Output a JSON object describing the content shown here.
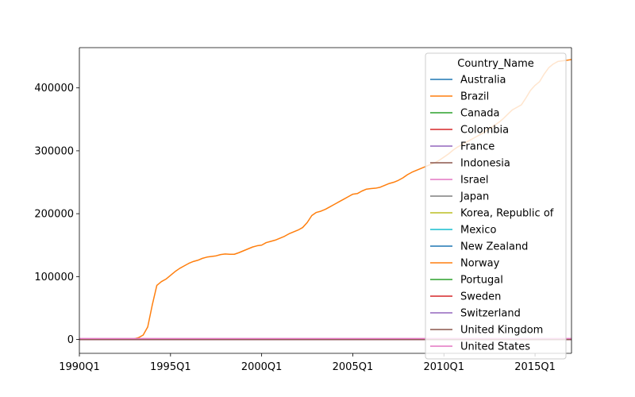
{
  "chart_data": {
    "type": "line",
    "title": "",
    "xlabel": "",
    "ylabel": "",
    "x_tick_labels": [
      "1990Q1",
      "1995Q1",
      "2000Q1",
      "2005Q1",
      "2010Q1",
      "2015Q1"
    ],
    "y_tick_labels": [
      "0",
      "100000",
      "200000",
      "300000",
      "400000"
    ],
    "xlim": [
      0,
      108
    ],
    "ylim": [
      -22000,
      464000
    ],
    "grid": false,
    "legend": {
      "title": "Country_Name",
      "placement": "top-right"
    },
    "series": [
      {
        "name": "Australia",
        "color": "#1f77b4",
        "x": [
          0,
          108
        ],
        "values": [
          0,
          0
        ]
      },
      {
        "name": "Brazil",
        "color": "#ff7f0e",
        "x": [
          0,
          10,
          12,
          13,
          14,
          15,
          16,
          17,
          18,
          19,
          20,
          21,
          22,
          23,
          24,
          25,
          26,
          27,
          28,
          29,
          30,
          31,
          32,
          33,
          34,
          35,
          36,
          37,
          38,
          39,
          40,
          41,
          42,
          43,
          44,
          45,
          46,
          47,
          48,
          49,
          50,
          51,
          52,
          53,
          54,
          55,
          56,
          57,
          58,
          59,
          60,
          61,
          62,
          63,
          64,
          65,
          66,
          67,
          68,
          69,
          70,
          71,
          72,
          73,
          74,
          75,
          76,
          77,
          78,
          79,
          80,
          81,
          82,
          83,
          84,
          85,
          86,
          87,
          88,
          89,
          90,
          91,
          92,
          93,
          94,
          95,
          96,
          97,
          98,
          99,
          100,
          101,
          102,
          103,
          104,
          105,
          106,
          107,
          108
        ],
        "values": [
          0,
          0,
          1000,
          3000,
          7000,
          20000,
          55000,
          86000,
          92000,
          96000,
          102000,
          108000,
          113000,
          117000,
          121000,
          124000,
          126000,
          129000,
          131000,
          132000,
          133000,
          135000,
          136000,
          135500,
          135500,
          138000,
          141000,
          144000,
          147000,
          149000,
          150000,
          154000,
          156000,
          158000,
          161000,
          164000,
          168000,
          171000,
          174000,
          178000,
          186000,
          197000,
          202000,
          204000,
          207000,
          211000,
          215000,
          219000,
          223000,
          227000,
          231000,
          232000,
          236000,
          239000,
          240000,
          240500,
          242000,
          245000,
          248000,
          250000,
          253000,
          257000,
          262000,
          266000,
          269000,
          272000,
          275000,
          278000,
          281000,
          285000,
          290000,
          295000,
          301000,
          306000,
          310000,
          314000,
          318000,
          322000,
          326000,
          330000,
          335000,
          340000,
          345000,
          351000,
          358000,
          365000,
          369000,
          373000,
          384000,
          396000,
          404000,
          410000,
          422000,
          432000,
          438000,
          442000,
          443000,
          444000,
          445000
        ]
      },
      {
        "name": "Canada",
        "color": "#2ca02c",
        "x": [
          0,
          108
        ],
        "values": [
          0,
          0
        ]
      },
      {
        "name": "Colombia",
        "color": "#d62728",
        "x": [
          0,
          108
        ],
        "values": [
          0,
          0
        ]
      },
      {
        "name": "France",
        "color": "#9467bd",
        "x": [
          0,
          108
        ],
        "values": [
          0,
          0
        ]
      },
      {
        "name": "Indonesia",
        "color": "#8c564b",
        "x": [
          0,
          108
        ],
        "values": [
          0,
          0
        ]
      },
      {
        "name": "Israel",
        "color": "#e377c2",
        "x": [
          0,
          108
        ],
        "values": [
          0,
          0
        ]
      },
      {
        "name": "Japan",
        "color": "#7f7f7f",
        "x": [
          0,
          108
        ],
        "values": [
          0,
          0
        ]
      },
      {
        "name": "Korea, Republic of",
        "color": "#bcbd22",
        "x": [
          0,
          108
        ],
        "values": [
          0,
          0
        ]
      },
      {
        "name": "Mexico",
        "color": "#17becf",
        "x": [
          0,
          108
        ],
        "values": [
          0,
          0
        ]
      },
      {
        "name": "New Zealand",
        "color": "#1f77b4",
        "x": [
          0,
          108
        ],
        "values": [
          0,
          0
        ]
      },
      {
        "name": "Norway",
        "color": "#ff7f0e",
        "x": [
          0,
          108
        ],
        "values": [
          0,
          0
        ]
      },
      {
        "name": "Portugal",
        "color": "#2ca02c",
        "x": [
          0,
          108
        ],
        "values": [
          0,
          0
        ]
      },
      {
        "name": "Sweden",
        "color": "#d62728",
        "x": [
          0,
          108
        ],
        "values": [
          0,
          0
        ]
      },
      {
        "name": "Switzerland",
        "color": "#9467bd",
        "x": [
          0,
          108
        ],
        "values": [
          0,
          0
        ]
      },
      {
        "name": "United Kingdom",
        "color": "#8c564b",
        "x": [
          0,
          108
        ],
        "values": [
          0,
          0
        ]
      },
      {
        "name": "United States",
        "color": "#e377c2",
        "x": [
          0,
          108
        ],
        "values": [
          1500,
          1500
        ]
      }
    ]
  }
}
